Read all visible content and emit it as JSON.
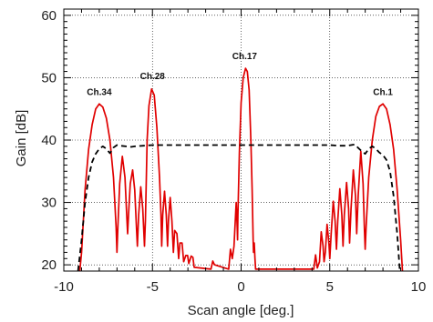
{
  "chart_data": {
    "type": "line",
    "title": "",
    "xlabel": "Scan angle [deg.]",
    "ylabel": "Gain [dB]",
    "xlim": [
      -10,
      10
    ],
    "ylim": [
      19,
      61
    ],
    "xticks": [
      -10,
      -5,
      0,
      5,
      10
    ],
    "yticks": [
      20,
      30,
      40,
      50,
      60
    ],
    "grid": true,
    "colors": {
      "beams": "#e00000",
      "envelope": "#000000",
      "grid": "#000000"
    },
    "annotations": [
      {
        "text": "Ch.34",
        "x": -8.0,
        "y": 47.2
      },
      {
        "text": "Ch.28",
        "x": -5.0,
        "y": 49.8
      },
      {
        "text": "Ch.17",
        "x": 0.2,
        "y": 53.0
      },
      {
        "text": "Ch.1",
        "x": 8.0,
        "y": 47.2
      }
    ],
    "series": [
      {
        "style": "solid",
        "points": [
          [
            -9.1,
            19
          ],
          [
            -9.0,
            22
          ],
          [
            -8.8,
            32
          ],
          [
            -8.6,
            38.5
          ],
          [
            -8.4,
            42.5
          ],
          [
            -8.2,
            45
          ],
          [
            -8.0,
            45.8
          ],
          [
            -7.8,
            45.3
          ],
          [
            -7.6,
            43.5
          ],
          [
            -7.4,
            40
          ],
          [
            -7.2,
            34
          ],
          [
            -7.05,
            26
          ],
          [
            -7.0,
            22
          ],
          [
            -6.95,
            26
          ],
          [
            -6.85,
            33
          ],
          [
            -6.7,
            37.4
          ],
          [
            -6.55,
            34
          ],
          [
            -6.45,
            28
          ],
          [
            -6.4,
            25
          ],
          [
            -6.35,
            28
          ],
          [
            -6.25,
            33
          ],
          [
            -6.12,
            35.2
          ],
          [
            -6.0,
            32
          ],
          [
            -5.9,
            26
          ],
          [
            -5.85,
            23
          ],
          [
            -5.78,
            28
          ],
          [
            -5.66,
            32.5
          ],
          [
            -5.55,
            29
          ],
          [
            -5.45,
            23
          ],
          [
            -5.4,
            27
          ],
          [
            -5.35,
            33
          ],
          [
            -5.3,
            40
          ],
          [
            -5.2,
            45.5
          ],
          [
            -5.05,
            48.2
          ],
          [
            -4.9,
            47.2
          ],
          [
            -4.75,
            42
          ],
          [
            -4.6,
            34
          ],
          [
            -4.52,
            28
          ],
          [
            -4.48,
            23
          ],
          [
            -4.42,
            28
          ],
          [
            -4.32,
            31.8
          ],
          [
            -4.22,
            28
          ],
          [
            -4.15,
            23
          ],
          [
            -4.1,
            27
          ],
          [
            -4.0,
            30.8
          ],
          [
            -3.9,
            27
          ],
          [
            -3.82,
            22
          ],
          [
            -3.75,
            25.5
          ],
          [
            -3.62,
            25
          ],
          [
            -3.52,
            21
          ],
          [
            -3.45,
            23.5
          ],
          [
            -3.33,
            23.5
          ],
          [
            -3.24,
            20.5
          ],
          [
            -3.12,
            21.5
          ],
          [
            -3.02,
            21.5
          ],
          [
            -2.95,
            20.2
          ],
          [
            -2.82,
            21.4
          ],
          [
            -2.72,
            21.2
          ],
          [
            -2.65,
            19.6
          ],
          [
            -1.7,
            19.3
          ],
          [
            -1.6,
            20.6
          ],
          [
            -1.5,
            20
          ],
          [
            -0.7,
            19.3
          ],
          [
            -0.6,
            22.5
          ],
          [
            -0.5,
            21
          ],
          [
            -0.4,
            23
          ],
          [
            -0.28,
            30
          ],
          [
            -0.22,
            26
          ],
          [
            -0.2,
            24
          ],
          [
            -0.18,
            28
          ],
          [
            -0.1,
            38
          ],
          [
            0.0,
            46
          ],
          [
            0.12,
            50
          ],
          [
            0.25,
            51.5
          ],
          [
            0.35,
            51
          ],
          [
            0.45,
            48
          ],
          [
            0.55,
            40
          ],
          [
            0.62,
            32
          ],
          [
            0.68,
            24
          ],
          [
            0.7,
            22
          ],
          [
            0.74,
            23.5
          ],
          [
            0.78,
            21
          ],
          [
            0.82,
            19.3
          ],
          [
            4.1,
            19.3
          ],
          [
            4.2,
            21.6
          ],
          [
            4.3,
            19.5
          ],
          [
            4.42,
            20.5
          ],
          [
            4.52,
            25.3
          ],
          [
            4.62,
            23
          ],
          [
            4.68,
            20.5
          ],
          [
            4.75,
            22
          ],
          [
            4.85,
            26.5
          ],
          [
            4.95,
            23.5
          ],
          [
            5.0,
            21
          ],
          [
            5.08,
            25
          ],
          [
            5.2,
            30.2
          ],
          [
            5.3,
            27
          ],
          [
            5.38,
            22.5
          ],
          [
            5.45,
            27
          ],
          [
            5.57,
            32.2
          ],
          [
            5.68,
            28
          ],
          [
            5.75,
            23
          ],
          [
            5.82,
            28
          ],
          [
            5.95,
            33.2
          ],
          [
            6.06,
            29
          ],
          [
            6.12,
            23.5
          ],
          [
            6.2,
            29
          ],
          [
            6.33,
            35.2
          ],
          [
            6.45,
            31
          ],
          [
            6.52,
            25
          ],
          [
            6.6,
            31
          ],
          [
            6.75,
            38.2
          ],
          [
            6.88,
            33
          ],
          [
            6.95,
            26
          ],
          [
            7.0,
            22.5
          ],
          [
            7.05,
            26
          ],
          [
            7.2,
            34
          ],
          [
            7.4,
            40
          ],
          [
            7.6,
            43.8
          ],
          [
            7.8,
            45.4
          ],
          [
            8.0,
            45.8
          ],
          [
            8.2,
            45
          ],
          [
            8.4,
            42.5
          ],
          [
            8.6,
            38.5
          ],
          [
            8.8,
            32
          ],
          [
            9.0,
            24
          ],
          [
            9.1,
            19
          ]
        ]
      },
      {
        "style": "dashed",
        "points": [
          [
            -9.2,
            19
          ],
          [
            -9.0,
            24
          ],
          [
            -8.8,
            30
          ],
          [
            -8.6,
            34
          ],
          [
            -8.4,
            36.5
          ],
          [
            -8.2,
            37.8
          ],
          [
            -8.0,
            38.6
          ],
          [
            -7.8,
            39
          ],
          [
            -7.6,
            38.6
          ],
          [
            -7.4,
            37.9
          ],
          [
            -7.2,
            38.8
          ],
          [
            -7.0,
            39.2
          ],
          [
            -6.8,
            39.1
          ],
          [
            -6.5,
            39
          ],
          [
            -6.2,
            38.9
          ],
          [
            -6.0,
            39
          ],
          [
            -5.5,
            39.1
          ],
          [
            -5.0,
            39.2
          ],
          [
            -4.0,
            39.2
          ],
          [
            -3.0,
            39.2
          ],
          [
            -2.0,
            39.2
          ],
          [
            -1.0,
            39.2
          ],
          [
            0.0,
            39.2
          ],
          [
            1.0,
            39.2
          ],
          [
            2.0,
            39.2
          ],
          [
            3.0,
            39.2
          ],
          [
            4.0,
            39.2
          ],
          [
            5.0,
            39.2
          ],
          [
            5.5,
            39.1
          ],
          [
            6.0,
            39.1
          ],
          [
            6.4,
            39.3
          ],
          [
            6.8,
            38.2
          ],
          [
            7.0,
            37.8
          ],
          [
            7.2,
            38.6
          ],
          [
            7.4,
            39
          ],
          [
            7.6,
            38.6
          ],
          [
            7.8,
            38
          ],
          [
            8.0,
            37.6
          ],
          [
            8.2,
            36.8
          ],
          [
            8.4,
            35
          ],
          [
            8.6,
            31
          ],
          [
            8.8,
            25
          ],
          [
            8.95,
            19
          ]
        ]
      }
    ]
  }
}
